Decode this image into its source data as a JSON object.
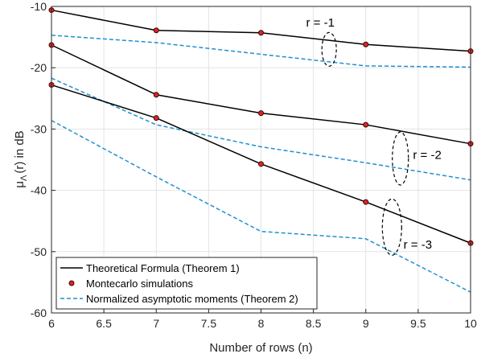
{
  "chart_data": {
    "type": "line",
    "xlabel": "Number of rows (n)",
    "ylabel_main": "μ",
    "ylabel_sub": "Λ",
    "ylabel_rest": "(r) in dB",
    "xlim": [
      6,
      10
    ],
    "ylim": [
      -60,
      -10
    ],
    "xticks": [
      6,
      6.5,
      7,
      7.5,
      8,
      8.5,
      9,
      9.5,
      10
    ],
    "yticks": [
      -60,
      -50,
      -40,
      -30,
      -20,
      -10
    ],
    "grid": true,
    "legend_placement": "bottom-left",
    "legend": {
      "theoretical": "Theoretical Formula (Theorem 1)",
      "montecarlo": "Montecarlo simulations",
      "asymptotic": "Normalized asymptotic moments (Theorem 2)"
    },
    "colors": {
      "theoretical": "#000000",
      "montecarlo_fill": "#d62728",
      "montecarlo_edge": "#4a0000",
      "asymptotic": "#1f8fd1",
      "grid": "#e3e3e3"
    },
    "x": [
      6,
      7,
      8,
      9,
      10
    ],
    "series": [
      {
        "group": "r=-1",
        "kind": "theoretical",
        "values": [
          -10.6,
          -13.9,
          -14.3,
          -16.2,
          -17.3
        ]
      },
      {
        "group": "r=-1",
        "kind": "montecarlo",
        "values": [
          -10.6,
          -13.9,
          -14.3,
          -16.2,
          -17.3
        ]
      },
      {
        "group": "r=-1",
        "kind": "asymptotic",
        "values": [
          -14.7,
          -15.9,
          -17.8,
          -19.7,
          -19.9
        ]
      },
      {
        "group": "r=-2",
        "kind": "theoretical",
        "values": [
          -16.3,
          -24.4,
          -27.4,
          -29.3,
          -32.4
        ]
      },
      {
        "group": "r=-2",
        "kind": "montecarlo",
        "values": [
          -16.3,
          -24.4,
          -27.4,
          -29.3,
          -32.4
        ]
      },
      {
        "group": "r=-2",
        "kind": "asymptotic",
        "values": [
          -21.7,
          -29.3,
          -32.9,
          -35.5,
          -38.3
        ]
      },
      {
        "group": "r=-3",
        "kind": "theoretical",
        "values": [
          -22.8,
          -28.2,
          -35.7,
          -41.9,
          -48.6
        ]
      },
      {
        "group": "r=-3",
        "kind": "montecarlo",
        "values": [
          -22.8,
          -28.2,
          -35.7,
          -41.9,
          -48.6
        ]
      },
      {
        "group": "r=-3",
        "kind": "asymptotic",
        "values": [
          -28.6,
          -37.8,
          -46.7,
          -47.9,
          -56.6
        ]
      }
    ],
    "annotations": [
      {
        "text": "r = -1",
        "ellipse_x": 8.65,
        "ellipse_y": -17.0,
        "text_x": 8.43,
        "text_y": -13.3
      },
      {
        "text": "r = -2",
        "ellipse_x": 9.33,
        "ellipse_y": -34.8,
        "text_x": 9.45,
        "text_y": -34.9
      },
      {
        "text": "r = -3",
        "ellipse_x": 9.25,
        "ellipse_y": -46.0,
        "text_x": 9.36,
        "text_y": -49.5
      }
    ]
  }
}
